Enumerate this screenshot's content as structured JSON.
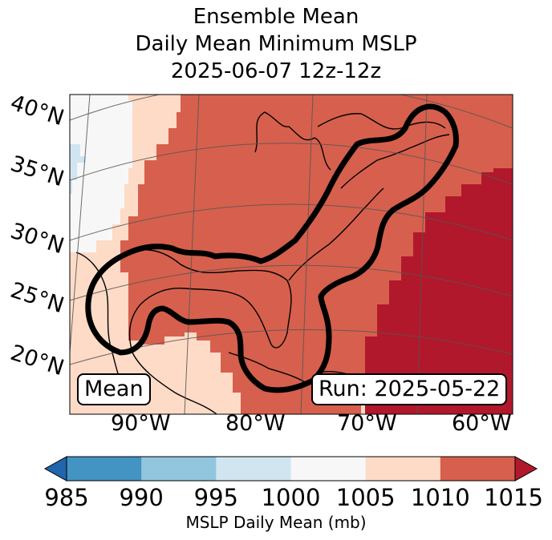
{
  "title": {
    "line1": "Ensemble Mean",
    "line2": "Daily Mean Minimum MSLP",
    "line3": "2025-06-07 12z-12z"
  },
  "map": {
    "lat_labels": [
      "40°N",
      "35°N",
      "30°N",
      "25°N",
      "20°N"
    ],
    "lon_labels": [
      "90°W",
      "80°W",
      "70°W",
      "60°W"
    ],
    "mean_label": "Mean",
    "run_label": "Run: 2025-05-22"
  },
  "colorbar": {
    "ticks": [
      "985",
      "990",
      "995",
      "1000",
      "1005",
      "1010",
      "1015"
    ],
    "label": "MSLP Daily Mean (mb)",
    "colors": [
      "#2166ac",
      "#4393c3",
      "#92c5de",
      "#d1e5f0",
      "#f7f7f7",
      "#fddbc7",
      "#d6604d",
      "#b2182b"
    ]
  }
}
